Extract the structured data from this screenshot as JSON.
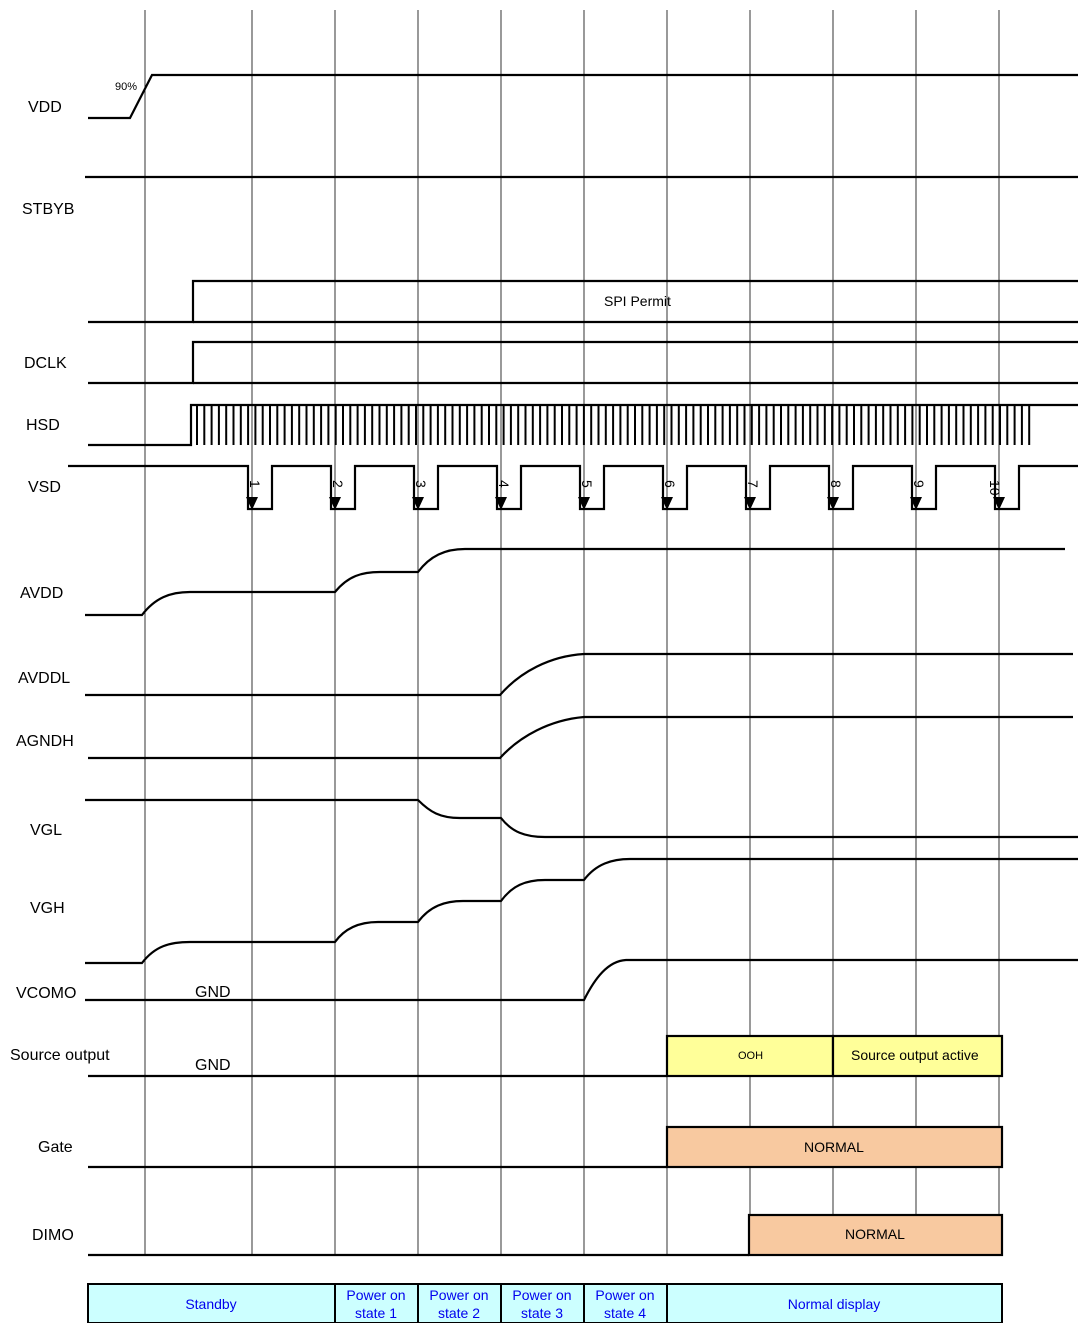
{
  "signals": {
    "vdd": "VDD",
    "stbyb": "STBYB",
    "dclk": "DCLK",
    "hsd": "HSD",
    "vsd": "VSD",
    "avdd": "AVDD",
    "avddl": "AVDDL",
    "agndh": "AGNDH",
    "vgl": "VGL",
    "vgh": "VGH",
    "vcomo": "VCOMO",
    "source_output": "Source output",
    "gate": "Gate",
    "dimo": "DIMO"
  },
  "annotations": {
    "vdd_threshold": "90%",
    "spi_permit": "SPI Permit",
    "vcomo_gnd": "GND",
    "source_gnd": "GND"
  },
  "boxes": {
    "source_ooh": "OOH",
    "source_active": "Source output active",
    "gate_normal": "NORMAL",
    "dimo_normal": "NORMAL"
  },
  "vsd_markers": [
    "1",
    "2",
    "3",
    "4",
    "5",
    "6",
    "7",
    "8",
    "9",
    "10"
  ],
  "states": [
    {
      "line1": "Standby",
      "line2": ""
    },
    {
      "line1": "Power on",
      "line2": "state 1"
    },
    {
      "line1": "Power on",
      "line2": "state 2"
    },
    {
      "line1": "Power on",
      "line2": "state 3"
    },
    {
      "line1": "Power on",
      "line2": "state 4"
    },
    {
      "line1": "Normal display",
      "line2": ""
    }
  ],
  "colors": {
    "state_fill": "#ccffff",
    "ooh_fill": "#ffff99",
    "normal_fill": "#f8c9a0",
    "state_text": "#0000ee"
  }
}
